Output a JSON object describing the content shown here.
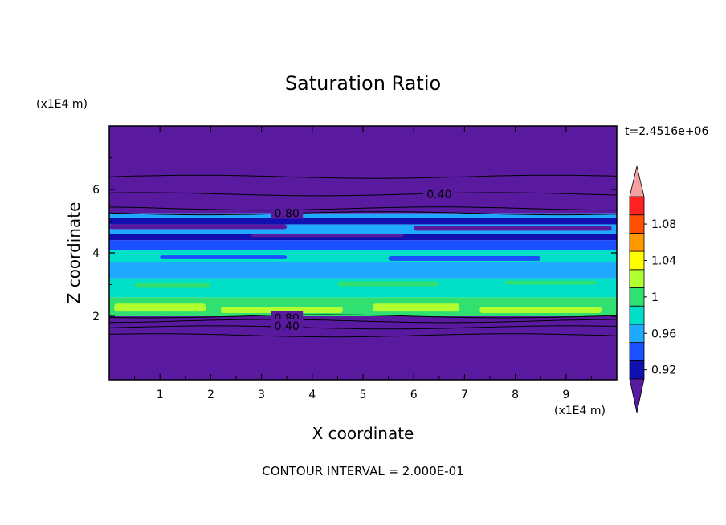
{
  "chart_data": {
    "type": "heatmap",
    "title": "Saturation Ratio",
    "xlabel": "X coordinate",
    "ylabel": "Z coordinate",
    "x_unit": "(x1E4 m)",
    "y_unit": "(x1E4 m)",
    "time_label": "t=2.4516e+06",
    "footer": "CONTOUR INTERVAL = 2.000E-01",
    "xlim": [
      0,
      10
    ],
    "ylim": [
      0,
      8
    ],
    "x_ticks": [
      1,
      2,
      3,
      4,
      5,
      6,
      7,
      8,
      9
    ],
    "y_ticks": [
      2,
      4,
      6
    ],
    "colorbar": {
      "levels": [
        0.92,
        0.94,
        0.96,
        0.98,
        1.0,
        1.02,
        1.04,
        1.06,
        1.08,
        1.1
      ],
      "tick_labels": [
        "0.92",
        "0.96",
        "1",
        "1.04",
        "1.08"
      ],
      "tick_values": [
        0.92,
        0.96,
        1.0,
        1.04,
        1.08
      ],
      "colors": [
        "#5a1aa0",
        "#1010b0",
        "#1a50ff",
        "#20aaff",
        "#00e0c8",
        "#30e070",
        "#b0ff30",
        "#ffff00",
        "#ff9900",
        "#ff5000",
        "#ff2020",
        "#f4a0a0"
      ]
    },
    "contour_labels": [
      {
        "text": "0.40",
        "x": 6.5,
        "y": 5.85
      },
      {
        "text": "0.80",
        "x": 3.5,
        "y": 5.25
      },
      {
        "text": "0.80",
        "x": 3.5,
        "y": 1.95
      },
      {
        "text": "0.40",
        "x": 3.5,
        "y": 1.7
      }
    ],
    "contour_levels_z": [
      6.4,
      5.85,
      5.4,
      5.25,
      2.0,
      1.85,
      1.65,
      1.4
    ],
    "bands": [
      {
        "z0": 0.0,
        "z1": 2.0,
        "color": "#5a1aa0"
      },
      {
        "z0": 2.0,
        "z1": 2.6,
        "color": "#30e070"
      },
      {
        "z0": 2.6,
        "z1": 3.2,
        "color": "#00e0c8"
      },
      {
        "z0": 3.2,
        "z1": 3.7,
        "color": "#20aaff"
      },
      {
        "z0": 3.7,
        "z1": 4.1,
        "color": "#00e0c8"
      },
      {
        "z0": 4.1,
        "z1": 4.4,
        "color": "#1a50ff"
      },
      {
        "z0": 4.4,
        "z1": 4.6,
        "color": "#1010b0"
      },
      {
        "z0": 4.6,
        "z1": 4.9,
        "color": "#20aaff"
      },
      {
        "z0": 4.9,
        "z1": 5.1,
        "color": "#1010b0"
      },
      {
        "z0": 5.1,
        "z1": 5.25,
        "color": "#20aaff"
      },
      {
        "z0": 5.25,
        "z1": 8.0,
        "color": "#5a1aa0"
      }
    ],
    "patches": [
      {
        "x": 0.1,
        "z": 2.15,
        "w": 1.8,
        "h": 0.25,
        "color": "#b0ff30"
      },
      {
        "x": 2.2,
        "z": 2.1,
        "w": 2.4,
        "h": 0.2,
        "color": "#b0ff30"
      },
      {
        "x": 5.2,
        "z": 2.15,
        "w": 1.7,
        "h": 0.25,
        "color": "#b0ff30"
      },
      {
        "x": 7.3,
        "z": 2.1,
        "w": 2.4,
        "h": 0.2,
        "color": "#b0ff30"
      },
      {
        "x": 0.5,
        "z": 2.9,
        "w": 1.5,
        "h": 0.15,
        "color": "#30e070"
      },
      {
        "x": 4.5,
        "z": 2.95,
        "w": 2.0,
        "h": 0.15,
        "color": "#30e070"
      },
      {
        "x": 7.8,
        "z": 3.0,
        "w": 1.8,
        "h": 0.12,
        "color": "#30e070"
      },
      {
        "x": 1.0,
        "z": 3.8,
        "w": 2.5,
        "h": 0.12,
        "color": "#1a50ff"
      },
      {
        "x": 5.5,
        "z": 3.75,
        "w": 3.0,
        "h": 0.15,
        "color": "#1a50ff"
      },
      {
        "x": 0.0,
        "z": 4.75,
        "w": 3.5,
        "h": 0.15,
        "color": "#5a1aa0"
      },
      {
        "x": 6.0,
        "z": 4.7,
        "w": 3.9,
        "h": 0.15,
        "color": "#5a1aa0"
      },
      {
        "x": 2.8,
        "z": 4.5,
        "w": 3.0,
        "h": 0.1,
        "color": "#5a1aa0"
      }
    ]
  }
}
